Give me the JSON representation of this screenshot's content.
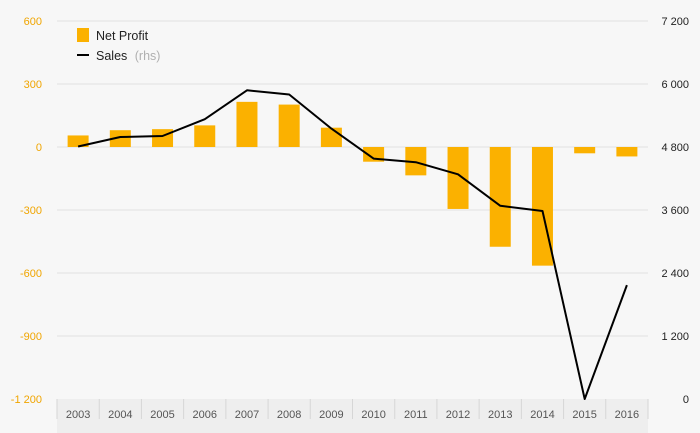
{
  "chart_data": {
    "type": "bar",
    "categories": [
      "2003",
      "2004",
      "2005",
      "2006",
      "2007",
      "2008",
      "2009",
      "2010",
      "2011",
      "2012",
      "2013",
      "2014",
      "2015",
      "2016"
    ],
    "series": [
      {
        "name": "Net Profit",
        "type": "bar",
        "axis": "left",
        "color": "#fbb100",
        "values": [
          55,
          80,
          85,
          103,
          215,
          202,
          92,
          -70,
          -135,
          -295,
          -475,
          -565,
          -30,
          -45
        ]
      },
      {
        "name": "Sales",
        "type": "line",
        "axis": "right",
        "color": "#000000",
        "values": [
          4810,
          4990,
          5010,
          5330,
          5880,
          5800,
          5150,
          4580,
          4510,
          4280,
          3680,
          3580,
          0,
          2170
        ]
      }
    ],
    "y_left": {
      "min": -1200,
      "max": 600,
      "ticks": [
        -1200,
        -900,
        -600,
        -300,
        0,
        300,
        600
      ],
      "tick_labels": [
        "-1 200",
        "-900",
        "-600",
        "-300",
        "0",
        "300",
        "600"
      ]
    },
    "y_right": {
      "min": 0,
      "max": 7200,
      "ticks": [
        0,
        1200,
        2400,
        3600,
        4800,
        6000,
        7200
      ],
      "tick_labels": [
        "0",
        "1 200",
        "2 400",
        "3 600",
        "4 800",
        "6 000",
        "7 200"
      ]
    },
    "legend": {
      "position": "top-left",
      "items": [
        {
          "label": "Net Profit",
          "note": ""
        },
        {
          "label": "Sales",
          "note": "(rhs)"
        }
      ]
    },
    "grid": true,
    "colors": {
      "bar": "#fbb100",
      "line": "#000000",
      "left_axis_text": "#f0a500",
      "grid": "#e2e2e2",
      "xaxis_band": "#eeeeee"
    }
  }
}
